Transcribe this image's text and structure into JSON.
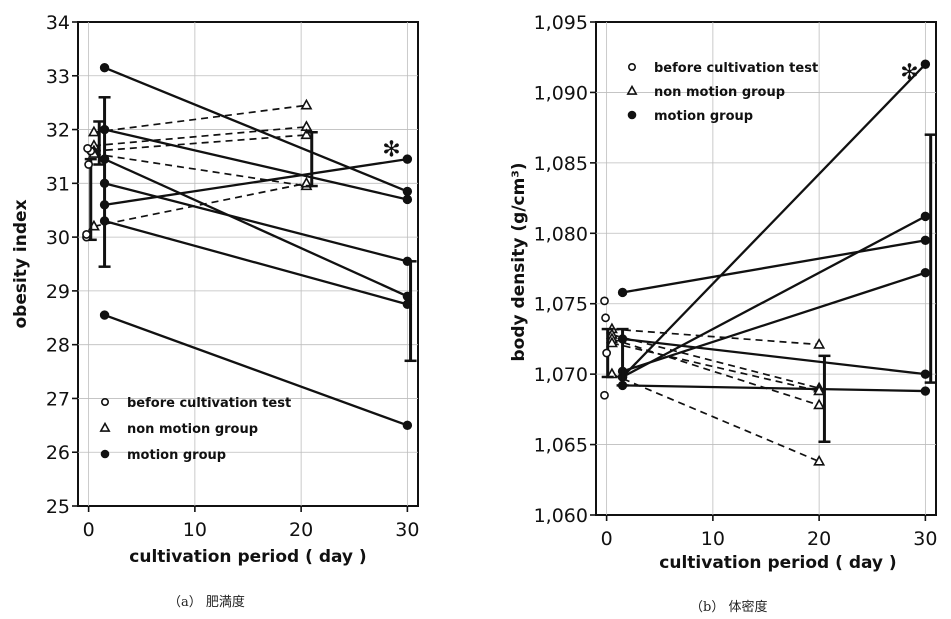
{
  "chart_data": [
    {
      "type": "line",
      "panel_caption": "（a） 肥満度",
      "xlabel": "cultivation period ( day )",
      "ylabel": "obesity index",
      "xlim": [
        -1,
        31
      ],
      "ylim": [
        25,
        34
      ],
      "x_ticks": [
        "0",
        "10",
        "20",
        "30"
      ],
      "y_ticks": [
        "25",
        "26",
        "27",
        "28",
        "29",
        "30",
        "31",
        "32",
        "33",
        "34"
      ],
      "legend": {
        "placement": "bottom-left",
        "entries": [
          "before cultivation test",
          "non motion group",
          "motion group"
        ]
      },
      "significance_mark": {
        "symbol": "✻",
        "x": 28.5,
        "y": 31.65
      },
      "before_points": [
        30.0,
        30.05,
        31.35,
        31.6,
        31.65
      ],
      "series": [
        {
          "group": "motion",
          "x": [
            1.5,
            30
          ],
          "y": [
            33.15,
            30.85
          ]
        },
        {
          "group": "motion",
          "x": [
            1.5,
            30
          ],
          "y": [
            32.0,
            30.7
          ]
        },
        {
          "group": "motion",
          "x": [
            1.5,
            30
          ],
          "y": [
            31.45,
            28.9
          ]
        },
        {
          "group": "motion",
          "x": [
            1.5,
            30
          ],
          "y": [
            31.0,
            29.55
          ]
        },
        {
          "group": "motion",
          "x": [
            1.5,
            30
          ],
          "y": [
            30.6,
            31.45
          ]
        },
        {
          "group": "motion",
          "x": [
            1.5,
            30
          ],
          "y": [
            30.3,
            28.75
          ]
        },
        {
          "group": "motion",
          "x": [
            1.5,
            30
          ],
          "y": [
            28.55,
            26.5
          ]
        },
        {
          "group": "non motion",
          "x": [
            0.5,
            20.5
          ],
          "y": [
            31.95,
            32.45
          ]
        },
        {
          "group": "non motion",
          "x": [
            0.5,
            20.5
          ],
          "y": [
            31.7,
            32.05
          ]
        },
        {
          "group": "non motion",
          "x": [
            0.5,
            20.5
          ],
          "y": [
            31.6,
            31.9
          ]
        },
        {
          "group": "non motion",
          "x": [
            0.5,
            20.5
          ],
          "y": [
            31.55,
            30.95
          ]
        },
        {
          "group": "non motion",
          "x": [
            0.5,
            20.5
          ],
          "y": [
            30.2,
            31.0
          ]
        }
      ],
      "error_bars": [
        {
          "x": 0.2,
          "y": 30.7,
          "low": 29.95,
          "high": 31.45
        },
        {
          "x": 1.0,
          "y": 31.75,
          "low": 31.35,
          "high": 32.15
        },
        {
          "x": 1.5,
          "y": 31.0,
          "low": 29.45,
          "high": 32.6
        },
        {
          "x": 21,
          "y": 31.45,
          "low": 30.95,
          "high": 31.95
        },
        {
          "x": 30.3,
          "y": 28.6,
          "low": 27.7,
          "high": 29.55
        }
      ]
    },
    {
      "type": "line",
      "panel_caption": "（b） 体密度",
      "xlabel": "cultivation period ( day )",
      "ylabel": "body density (g/cm³)",
      "xlim": [
        -1,
        31
      ],
      "ylim": [
        1.06,
        1.095
      ],
      "x_ticks": [
        "0",
        "10",
        "20",
        "30"
      ],
      "y_ticks": [
        "1,060",
        "1,065",
        "1,070",
        "1,075",
        "1,080",
        "1,085",
        "1,090",
        "1,095"
      ],
      "legend": {
        "placement": "top-left",
        "entries": [
          "before cultivation test",
          "non motion group",
          "motion group"
        ]
      },
      "significance_mark": {
        "symbol": "✻",
        "x": 28.5,
        "y": 1.0915
      },
      "before_points": [
        1.0685,
        1.0715,
        1.074,
        1.0752
      ],
      "series": [
        {
          "group": "motion",
          "x": [
            1.5,
            30
          ],
          "y": [
            1.0758,
            1.0795
          ]
        },
        {
          "group": "motion",
          "x": [
            1.5,
            30
          ],
          "y": [
            1.0698,
            1.092
          ]
        },
        {
          "group": "motion",
          "x": [
            1.5,
            30
          ],
          "y": [
            1.0698,
            1.0812
          ]
        },
        {
          "group": "motion",
          "x": [
            1.5,
            30
          ],
          "y": [
            1.0702,
            1.0772
          ]
        },
        {
          "group": "motion",
          "x": [
            1.5,
            30
          ],
          "y": [
            1.0725,
            1.07
          ]
        },
        {
          "group": "motion",
          "x": [
            1.5,
            30
          ],
          "y": [
            1.0692,
            1.0688
          ]
        },
        {
          "group": "non motion",
          "x": [
            0.5,
            20
          ],
          "y": [
            1.0732,
            1.0721
          ]
        },
        {
          "group": "non motion",
          "x": [
            0.5,
            20
          ],
          "y": [
            1.0728,
            1.069
          ]
        },
        {
          "group": "non motion",
          "x": [
            0.5,
            20
          ],
          "y": [
            1.0725,
            1.0678
          ]
        },
        {
          "group": "non motion",
          "x": [
            0.5,
            20
          ],
          "y": [
            1.0722,
            1.0688
          ]
        },
        {
          "group": "non motion",
          "x": [
            0.5,
            20
          ],
          "y": [
            1.07,
            1.0638
          ]
        }
      ],
      "error_bars": [
        {
          "x": 0.1,
          "y": 1.0715,
          "low": 1.0698,
          "high": 1.0732
        },
        {
          "x": 1.5,
          "y": 1.0712,
          "low": 1.0692,
          "high": 1.0732
        },
        {
          "x": 20.5,
          "y": 1.069,
          "low": 1.0652,
          "high": 1.0713
        },
        {
          "x": 30.5,
          "y": 1.0782,
          "low": 1.0694,
          "high": 1.087
        }
      ]
    }
  ]
}
